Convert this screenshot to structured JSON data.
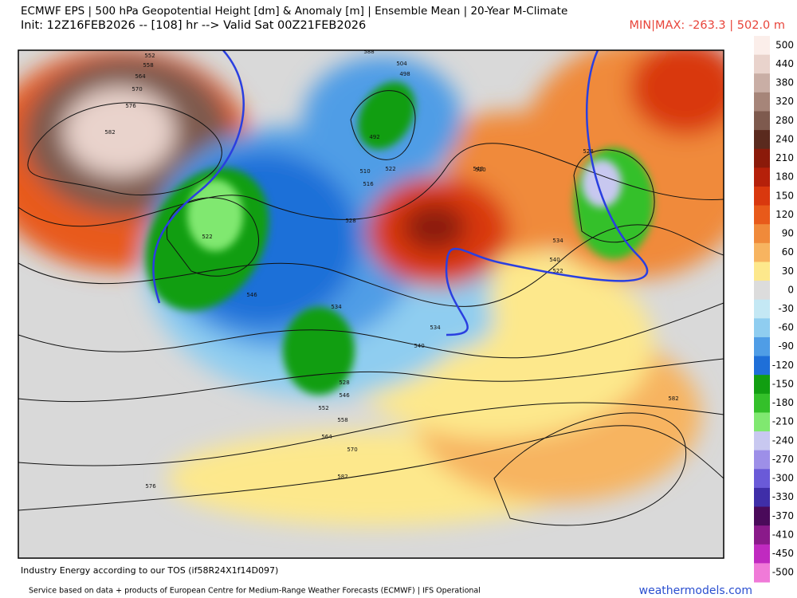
{
  "header": {
    "title": "ECMWF EPS | 500 hPa Geopotential Height [dm] & Anomaly [m] | Ensemble Mean | 20-Year M-Climate",
    "subtitle": "Init: 12Z16FEB2026 -- [108] hr --> Valid Sat 00Z21FEB2026",
    "minmax": "MIN|MAX: -263.3 | 502.0 m"
  },
  "colorbar": {
    "ticks": [
      500,
      440,
      380,
      320,
      280,
      240,
      210,
      180,
      150,
      120,
      90,
      60,
      30,
      0,
      -30,
      -60,
      -90,
      -120,
      -150,
      -180,
      -210,
      -240,
      -270,
      -300,
      -330,
      -370,
      -410,
      -450,
      -500
    ],
    "colors": [
      "#fbeeea",
      "#e9d3cc",
      "#c9aea5",
      "#a68579",
      "#7e5a4e",
      "#5a2a1e",
      "#8b1a0a",
      "#b5200a",
      "#d9380e",
      "#e85a1a",
      "#f08a3a",
      "#f7b460",
      "#fde88c",
      "#dcdcdc",
      "#c4e8f4",
      "#8fcdf0",
      "#4f9de6",
      "#1f6fd8",
      "#119e11",
      "#34c02a",
      "#80e870",
      "#c8c8f0",
      "#9d8fe8",
      "#6a5ad8",
      "#3f2ea8",
      "#4a0a5a",
      "#8a1a8a",
      "#c02ac0",
      "#f07ad8"
    ]
  },
  "map": {
    "contour_labels": [
      552,
      558,
      564,
      570,
      576,
      582,
      504,
      498,
      492,
      510,
      516,
      522,
      522,
      528,
      534,
      540,
      546,
      534,
      540,
      528,
      534,
      540,
      522,
      528,
      546,
      552,
      558,
      564,
      570,
      576,
      582,
      582,
      588,
      520
    ]
  },
  "footer": {
    "note": "Industry Energy according to our TOS (if58R24X1f14D097)",
    "source": "Service based on data + products of European Centre for Medium-Range Weather Forecasts (ECMWF) | IFS Operational",
    "brand": "weathermodels.com"
  }
}
